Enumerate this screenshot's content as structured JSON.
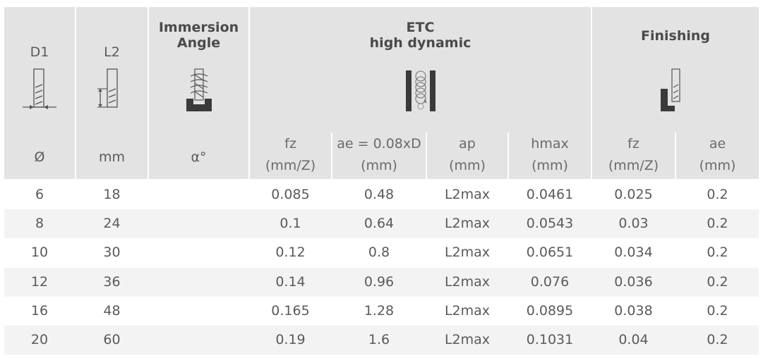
{
  "header": {
    "d1": "D1",
    "l2": "L2",
    "immersion": [
      "Immersion",
      "Angle"
    ],
    "etc": [
      "ETC",
      "high dynamic"
    ],
    "finishing": "Finishing"
  },
  "subheader": {
    "diameter": "Ø",
    "mm": "mm",
    "alpha": "α°",
    "fz": [
      "fz",
      "(mm/Z)"
    ],
    "ae": [
      "ae = 0.08xD",
      "(mm)"
    ],
    "ap": [
      "ap",
      "(mm)"
    ],
    "hmax": [
      "hmax",
      "(mm)"
    ],
    "fin_fz": [
      "fz",
      "(mm/Z)"
    ],
    "fin_ae": [
      "ae",
      "(mm)"
    ]
  },
  "rows": [
    {
      "d1": "6",
      "l2": "18",
      "alpha": "",
      "fz": "0.085",
      "ae": "0.48",
      "ap": "L2max",
      "hmax": "0.0461",
      "fin_fz": "0.025",
      "fin_ae": "0.2"
    },
    {
      "d1": "8",
      "l2": "24",
      "alpha": "",
      "fz": "0.1",
      "ae": "0.64",
      "ap": "L2max",
      "hmax": "0.0543",
      "fin_fz": "0.03",
      "fin_ae": "0.2"
    },
    {
      "d1": "10",
      "l2": "30",
      "alpha": "",
      "fz": "0.12",
      "ae": "0.8",
      "ap": "L2max",
      "hmax": "0.0651",
      "fin_fz": "0.034",
      "fin_ae": "0.2"
    },
    {
      "d1": "12",
      "l2": "36",
      "alpha": "",
      "fz": "0.14",
      "ae": "0.96",
      "ap": "L2max",
      "hmax": "0.076",
      "fin_fz": "0.036",
      "fin_ae": "0.2"
    },
    {
      "d1": "16",
      "l2": "48",
      "alpha": "",
      "fz": "0.165",
      "ae": "1.28",
      "ap": "L2max",
      "hmax": "0.0895",
      "fin_fz": "0.038",
      "fin_ae": "0.2"
    },
    {
      "d1": "20",
      "l2": "60",
      "alpha": "",
      "fz": "0.19",
      "ae": "1.6",
      "ap": "L2max",
      "hmax": "0.1031",
      "fin_fz": "0.04",
      "fin_ae": "0.2"
    }
  ],
  "icons": [
    "end-mill-diameter-icon",
    "end-mill-length-icon",
    "immersion-angle-icon",
    "trochoidal-milling-icon",
    "finishing-profile-icon"
  ],
  "colors": {
    "header_bg": "#e3e3e3",
    "stripe_bg": "#f3f3f3",
    "text": "#5a5a5a",
    "icon_dark": "#3a3a3a"
  }
}
